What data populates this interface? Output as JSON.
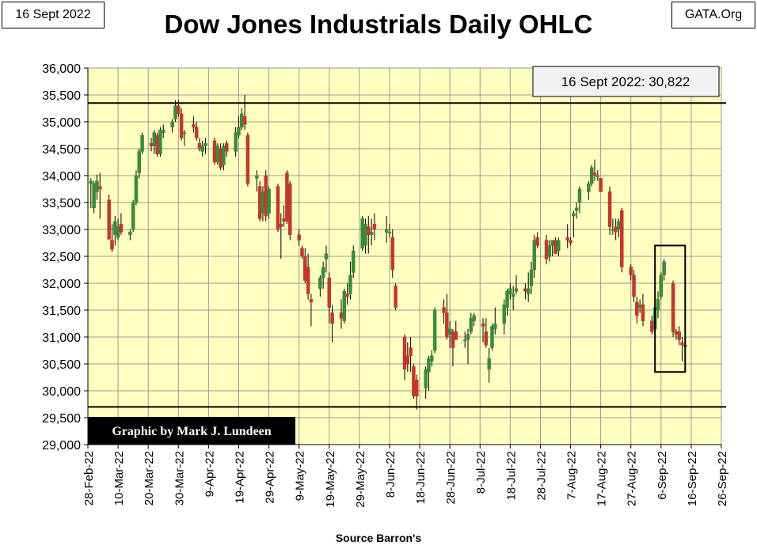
{
  "header": {
    "date": "16 Sept 2022",
    "title": "Dow Jones Industrials Daily OHLC",
    "source_tag": "GATA.Org"
  },
  "footer": {
    "source": "Source Barron's"
  },
  "colors": {
    "plot_bg": "#ffffc0",
    "grid": "#9a9a9a",
    "up": "#3a8a3a",
    "down": "#c0392b",
    "wick": "#000000",
    "page_bg": "#ffffff"
  },
  "chart_data": {
    "type": "ohlc",
    "title": "Dow Jones Industrials Daily OHLC",
    "xlabel": "Source Barron's",
    "ylabel": "",
    "ylim": [
      29000,
      36000
    ],
    "yticks": [
      29000,
      29500,
      30000,
      30500,
      31000,
      31500,
      32000,
      32500,
      33000,
      33500,
      34000,
      34500,
      35000,
      35500,
      36000
    ],
    "yticklabels": [
      "29,000",
      "29,500",
      "30,000",
      "30,500",
      "31,000",
      "31,500",
      "32,000",
      "32,500",
      "33,000",
      "33,500",
      "34,000",
      "34,500",
      "35,000",
      "35,500",
      "36,000"
    ],
    "xlim_days": [
      0,
      210
    ],
    "xticks_days": [
      0,
      10,
      20,
      30,
      40,
      50,
      60,
      70,
      80,
      90,
      100,
      110,
      120,
      130,
      140,
      150,
      160,
      170,
      180,
      190,
      200,
      210
    ],
    "xticklabels": [
      "28-Feb-22",
      "10-Mar-22",
      "20-Mar-22",
      "30-Mar-22",
      "9-Apr-22",
      "19-Apr-22",
      "29-Apr-22",
      "9-May-22",
      "19-May-22",
      "29-May-22",
      "8-Jun-22",
      "18-Jun-22",
      "28-Jun-22",
      "8-Jul-22",
      "18-Jul-22",
      "28-Jul-22",
      "7-Aug-22",
      "17-Aug-22",
      "27-Aug-22",
      "6-Sep-22",
      "16-Sep-22",
      "26-Sep-22"
    ],
    "reference_lines": [
      {
        "name": "upper-level",
        "value": 35350
      },
      {
        "name": "lower-level",
        "value": 29700
      }
    ],
    "annotations": {
      "last_value_label": "16 Sept 2022: 30,822",
      "credit": "Graphic by Mark J. Lundeen",
      "highlight_box": {
        "x_days": [
          188,
          198
        ],
        "y": [
          30350,
          32700
        ]
      }
    },
    "bars": [
      {
        "d": 1,
        "o": 33850,
        "h": 33950,
        "l": 33400,
        "c": 33900
      },
      {
        "d": 2,
        "o": 33400,
        "h": 33900,
        "l": 33300,
        "c": 33850
      },
      {
        "d": 3,
        "o": 33700,
        "h": 34020,
        "l": 33550,
        "c": 33900
      },
      {
        "d": 4,
        "o": 33800,
        "h": 34050,
        "l": 33200,
        "c": 33750
      },
      {
        "d": 7,
        "o": 33550,
        "h": 33650,
        "l": 32800,
        "c": 32820
      },
      {
        "d": 8,
        "o": 32800,
        "h": 33100,
        "l": 32580,
        "c": 32630
      },
      {
        "d": 9,
        "o": 32900,
        "h": 33250,
        "l": 32700,
        "c": 33150
      },
      {
        "d": 10,
        "o": 32850,
        "h": 33200,
        "l": 32800,
        "c": 33050
      },
      {
        "d": 11,
        "o": 33100,
        "h": 33300,
        "l": 32900,
        "c": 32950
      },
      {
        "d": 14,
        "o": 32900,
        "h": 33000,
        "l": 32800,
        "c": 32950
      },
      {
        "d": 15,
        "o": 33000,
        "h": 33550,
        "l": 32950,
        "c": 33500
      },
      {
        "d": 16,
        "o": 33500,
        "h": 34100,
        "l": 33450,
        "c": 34000
      },
      {
        "d": 17,
        "o": 34050,
        "h": 34500,
        "l": 33950,
        "c": 34450
      },
      {
        "d": 18,
        "o": 34450,
        "h": 34800,
        "l": 34400,
        "c": 34750
      },
      {
        "d": 21,
        "o": 34600,
        "h": 34700,
        "l": 34450,
        "c": 34550
      },
      {
        "d": 22,
        "o": 34550,
        "h": 34850,
        "l": 34400,
        "c": 34800
      },
      {
        "d": 23,
        "o": 34750,
        "h": 34800,
        "l": 34350,
        "c": 34400
      },
      {
        "d": 24,
        "o": 34400,
        "h": 34900,
        "l": 34350,
        "c": 34850
      },
      {
        "d": 25,
        "o": 34800,
        "h": 34950,
        "l": 34700,
        "c": 34850
      },
      {
        "d": 28,
        "o": 34900,
        "h": 35050,
        "l": 34800,
        "c": 35000
      },
      {
        "d": 29,
        "o": 35050,
        "h": 35400,
        "l": 35000,
        "c": 35300
      },
      {
        "d": 30,
        "o": 35300,
        "h": 35400,
        "l": 35100,
        "c": 35150
      },
      {
        "d": 31,
        "o": 35150,
        "h": 35250,
        "l": 34650,
        "c": 34700
      },
      {
        "d": 32,
        "o": 34800,
        "h": 34850,
        "l": 34550,
        "c": 34800
      },
      {
        "d": 35,
        "o": 34950,
        "h": 35100,
        "l": 34800,
        "c": 34900
      },
      {
        "d": 36,
        "o": 34900,
        "h": 35000,
        "l": 34650,
        "c": 34700
      },
      {
        "d": 37,
        "o": 34600,
        "h": 34700,
        "l": 34450,
        "c": 34500
      },
      {
        "d": 38,
        "o": 34450,
        "h": 34650,
        "l": 34350,
        "c": 34550
      },
      {
        "d": 39,
        "o": 34550,
        "h": 34700,
        "l": 34400,
        "c": 34600
      },
      {
        "d": 42,
        "o": 34650,
        "h": 34700,
        "l": 34200,
        "c": 34250
      },
      {
        "d": 43,
        "o": 34250,
        "h": 34600,
        "l": 34200,
        "c": 34550
      },
      {
        "d": 44,
        "o": 34500,
        "h": 34600,
        "l": 34100,
        "c": 34150
      },
      {
        "d": 45,
        "o": 34200,
        "h": 34600,
        "l": 34100,
        "c": 34550
      },
      {
        "d": 46,
        "o": 34600,
        "h": 34650,
        "l": 34350,
        "c": 34450
      },
      {
        "d": 49,
        "o": 34450,
        "h": 34900,
        "l": 34350,
        "c": 34800
      },
      {
        "d": 50,
        "o": 34750,
        "h": 35100,
        "l": 34700,
        "c": 34900
      },
      {
        "d": 51,
        "o": 34900,
        "h": 35250,
        "l": 34850,
        "c": 35150
      },
      {
        "d": 52,
        "o": 35100,
        "h": 35500,
        "l": 34850,
        "c": 34950
      },
      {
        "d": 53,
        "o": 34750,
        "h": 34800,
        "l": 33800,
        "c": 33850
      },
      {
        "d": 56,
        "o": 33950,
        "h": 34100,
        "l": 33700,
        "c": 34000
      },
      {
        "d": 57,
        "o": 33800,
        "h": 33900,
        "l": 33150,
        "c": 33200
      },
      {
        "d": 58,
        "o": 33300,
        "h": 33800,
        "l": 33150,
        "c": 33700
      },
      {
        "d": 59,
        "o": 34000,
        "h": 34100,
        "l": 33150,
        "c": 33250
      },
      {
        "d": 60,
        "o": 33300,
        "h": 33800,
        "l": 33200,
        "c": 33750
      },
      {
        "d": 63,
        "o": 33800,
        "h": 33850,
        "l": 32950,
        "c": 33000
      },
      {
        "d": 64,
        "o": 33100,
        "h": 33300,
        "l": 32450,
        "c": 33050
      },
      {
        "d": 65,
        "o": 33200,
        "h": 33450,
        "l": 33050,
        "c": 33150
      },
      {
        "d": 66,
        "o": 34050,
        "h": 34100,
        "l": 33100,
        "c": 33150
      },
      {
        "d": 67,
        "o": 33850,
        "h": 33900,
        "l": 32800,
        "c": 32900
      },
      {
        "d": 70,
        "o": 32900,
        "h": 33000,
        "l": 32700,
        "c": 32800
      },
      {
        "d": 71,
        "o": 32650,
        "h": 32700,
        "l": 32450,
        "c": 32500
      },
      {
        "d": 72,
        "o": 32500,
        "h": 32650,
        "l": 32000,
        "c": 32050
      },
      {
        "d": 73,
        "o": 32300,
        "h": 32550,
        "l": 31700,
        "c": 31800
      },
      {
        "d": 74,
        "o": 31700,
        "h": 31800,
        "l": 31200,
        "c": 31650
      },
      {
        "d": 77,
        "o": 31900,
        "h": 32150,
        "l": 31750,
        "c": 32100
      },
      {
        "d": 78,
        "o": 32100,
        "h": 32400,
        "l": 31900,
        "c": 32300
      },
      {
        "d": 79,
        "o": 32450,
        "h": 32700,
        "l": 32200,
        "c": 32550
      },
      {
        "d": 80,
        "o": 32100,
        "h": 32200,
        "l": 31250,
        "c": 31550
      },
      {
        "d": 81,
        "o": 31450,
        "h": 31600,
        "l": 30900,
        "c": 31250
      },
      {
        "d": 84,
        "o": 31450,
        "h": 31700,
        "l": 31150,
        "c": 31350
      },
      {
        "d": 85,
        "o": 31300,
        "h": 31900,
        "l": 31250,
        "c": 31850
      },
      {
        "d": 86,
        "o": 31800,
        "h": 32000,
        "l": 31600,
        "c": 31750
      },
      {
        "d": 87,
        "o": 31800,
        "h": 32400,
        "l": 31700,
        "c": 32150
      },
      {
        "d": 88,
        "o": 32200,
        "h": 32700,
        "l": 32100,
        "c": 32600
      },
      {
        "d": 91,
        "o": 32650,
        "h": 33250,
        "l": 32600,
        "c": 33200
      },
      {
        "d": 92,
        "o": 32700,
        "h": 33200,
        "l": 32550,
        "c": 33100
      },
      {
        "d": 93,
        "o": 33050,
        "h": 33250,
        "l": 32550,
        "c": 32900
      },
      {
        "d": 94,
        "o": 32900,
        "h": 33200,
        "l": 32700,
        "c": 32950
      },
      {
        "d": 95,
        "o": 33100,
        "h": 33300,
        "l": 32800,
        "c": 33000
      },
      {
        "d": 99,
        "o": 32950,
        "h": 33250,
        "l": 32750,
        "c": 33000
      },
      {
        "d": 100,
        "o": 32950,
        "h": 33100,
        "l": 32850,
        "c": 32950
      },
      {
        "d": 101,
        "o": 32850,
        "h": 33000,
        "l": 32100,
        "c": 32250
      },
      {
        "d": 102,
        "o": 31950,
        "h": 32000,
        "l": 31500,
        "c": 31550
      },
      {
        "d": 105,
        "o": 31000,
        "h": 31050,
        "l": 30200,
        "c": 30400
      },
      {
        "d": 106,
        "o": 30650,
        "h": 30900,
        "l": 30350,
        "c": 30500
      },
      {
        "d": 107,
        "o": 30800,
        "h": 31000,
        "l": 30350,
        "c": 30650
      },
      {
        "d": 108,
        "o": 30450,
        "h": 30500,
        "l": 29850,
        "c": 29900
      },
      {
        "d": 109,
        "o": 30200,
        "h": 30300,
        "l": 29650,
        "c": 29900
      },
      {
        "d": 112,
        "o": 30050,
        "h": 30450,
        "l": 29850,
        "c": 30400
      },
      {
        "d": 113,
        "o": 30350,
        "h": 30650,
        "l": 30000,
        "c": 30600
      },
      {
        "d": 114,
        "o": 30550,
        "h": 30750,
        "l": 30450,
        "c": 30650
      },
      {
        "d": 115,
        "o": 30750,
        "h": 31550,
        "l": 30700,
        "c": 31500
      },
      {
        "d": 118,
        "o": 31550,
        "h": 31700,
        "l": 31250,
        "c": 31450
      },
      {
        "d": 119,
        "o": 31450,
        "h": 31800,
        "l": 30950,
        "c": 31000
      },
      {
        "d": 120,
        "o": 31050,
        "h": 31300,
        "l": 30800,
        "c": 31150
      },
      {
        "d": 121,
        "o": 31100,
        "h": 31150,
        "l": 30450,
        "c": 30800
      },
      {
        "d": 122,
        "o": 31100,
        "h": 31300,
        "l": 30950,
        "c": 30950
      },
      {
        "d": 125,
        "o": 30950,
        "h": 31100,
        "l": 30800,
        "c": 30950
      },
      {
        "d": 126,
        "o": 30950,
        "h": 31150,
        "l": 30500,
        "c": 31050
      },
      {
        "d": 127,
        "o": 31100,
        "h": 31450,
        "l": 31050,
        "c": 31350
      },
      {
        "d": 128,
        "o": 31300,
        "h": 31450,
        "l": 31200,
        "c": 31400
      },
      {
        "d": 131,
        "o": 31250,
        "h": 31350,
        "l": 30900,
        "c": 31200
      },
      {
        "d": 132,
        "o": 31100,
        "h": 31350,
        "l": 30800,
        "c": 30850
      },
      {
        "d": 133,
        "o": 30400,
        "h": 30800,
        "l": 30150,
        "c": 30600
      },
      {
        "d": 134,
        "o": 30800,
        "h": 31250,
        "l": 30750,
        "c": 31200
      },
      {
        "d": 135,
        "o": 31150,
        "h": 31550,
        "l": 31050,
        "c": 31250
      },
      {
        "d": 138,
        "o": 31250,
        "h": 31700,
        "l": 31050,
        "c": 31600
      },
      {
        "d": 139,
        "o": 31550,
        "h": 31900,
        "l": 31400,
        "c": 31850
      },
      {
        "d": 140,
        "o": 31800,
        "h": 32000,
        "l": 31700,
        "c": 31900
      },
      {
        "d": 141,
        "o": 31750,
        "h": 31950,
        "l": 31500,
        "c": 31800
      },
      {
        "d": 142,
        "o": 31850,
        "h": 32150,
        "l": 31800,
        "c": 31900
      },
      {
        "d": 145,
        "o": 31900,
        "h": 32000,
        "l": 31700,
        "c": 31850
      },
      {
        "d": 146,
        "o": 31800,
        "h": 32200,
        "l": 31650,
        "c": 31900
      },
      {
        "d": 147,
        "o": 31950,
        "h": 32400,
        "l": 31800,
        "c": 32250
      },
      {
        "d": 148,
        "o": 32250,
        "h": 32900,
        "l": 32100,
        "c": 32800
      },
      {
        "d": 149,
        "o": 32850,
        "h": 32950,
        "l": 32650,
        "c": 32700
      },
      {
        "d": 152,
        "o": 32800,
        "h": 32900,
        "l": 32350,
        "c": 32450
      },
      {
        "d": 153,
        "o": 32500,
        "h": 32800,
        "l": 32400,
        "c": 32700
      },
      {
        "d": 154,
        "o": 32700,
        "h": 32800,
        "l": 32500,
        "c": 32800
      },
      {
        "d": 155,
        "o": 32800,
        "h": 32850,
        "l": 32550,
        "c": 32550
      },
      {
        "d": 156,
        "o": 32600,
        "h": 32850,
        "l": 32500,
        "c": 32800
      },
      {
        "d": 159,
        "o": 32850,
        "h": 33100,
        "l": 32650,
        "c": 32800
      },
      {
        "d": 160,
        "o": 32800,
        "h": 32850,
        "l": 32700,
        "c": 32750
      },
      {
        "d": 161,
        "o": 33250,
        "h": 33350,
        "l": 32850,
        "c": 33300
      },
      {
        "d": 162,
        "o": 33350,
        "h": 33500,
        "l": 33200,
        "c": 33400
      },
      {
        "d": 163,
        "o": 33500,
        "h": 33800,
        "l": 33300,
        "c": 33750
      },
      {
        "d": 166,
        "o": 33700,
        "h": 33900,
        "l": 33550,
        "c": 33850
      },
      {
        "d": 167,
        "o": 33850,
        "h": 34200,
        "l": 33800,
        "c": 34150
      },
      {
        "d": 168,
        "o": 34050,
        "h": 34300,
        "l": 33900,
        "c": 34000
      },
      {
        "d": 169,
        "o": 34000,
        "h": 34100,
        "l": 33900,
        "c": 34000
      },
      {
        "d": 170,
        "o": 33950,
        "h": 33950,
        "l": 33700,
        "c": 33700
      },
      {
        "d": 173,
        "o": 33700,
        "h": 33800,
        "l": 32900,
        "c": 33050
      },
      {
        "d": 174,
        "o": 33000,
        "h": 33200,
        "l": 32900,
        "c": 33000
      },
      {
        "d": 175,
        "o": 33050,
        "h": 33200,
        "l": 32800,
        "c": 32950
      },
      {
        "d": 176,
        "o": 33000,
        "h": 33200,
        "l": 32850,
        "c": 33150
      },
      {
        "d": 177,
        "o": 33350,
        "h": 33400,
        "l": 32200,
        "c": 32300
      },
      {
        "d": 180,
        "o": 32300,
        "h": 32350,
        "l": 32050,
        "c": 32150
      },
      {
        "d": 181,
        "o": 32150,
        "h": 32250,
        "l": 31650,
        "c": 31750
      },
      {
        "d": 182,
        "o": 31650,
        "h": 31750,
        "l": 31250,
        "c": 31400
      },
      {
        "d": 183,
        "o": 31550,
        "h": 31700,
        "l": 31450,
        "c": 31600
      },
      {
        "d": 184,
        "o": 31600,
        "h": 31800,
        "l": 31200,
        "c": 31300
      },
      {
        "d": 187,
        "o": 31300,
        "h": 31400,
        "l": 31050,
        "c": 31100
      },
      {
        "d": 188,
        "o": 31150,
        "h": 31600,
        "l": 31100,
        "c": 31550
      },
      {
        "d": 189,
        "o": 31500,
        "h": 31850,
        "l": 31350,
        "c": 31700
      },
      {
        "d": 190,
        "o": 31750,
        "h": 32200,
        "l": 31700,
        "c": 32150
      },
      {
        "d": 191,
        "o": 32150,
        "h": 32450,
        "l": 32050,
        "c": 32400
      },
      {
        "d": 194,
        "o": 32000,
        "h": 32050,
        "l": 31000,
        "c": 31100
      },
      {
        "d": 195,
        "o": 31100,
        "h": 31150,
        "l": 30950,
        "c": 31050
      },
      {
        "d": 196,
        "o": 31100,
        "h": 31200,
        "l": 30850,
        "c": 30950
      },
      {
        "d": 197,
        "o": 30900,
        "h": 31000,
        "l": 30550,
        "c": 30850
      },
      {
        "d": 198,
        "o": 30850,
        "h": 30850,
        "l": 30800,
        "c": 30822
      }
    ]
  }
}
